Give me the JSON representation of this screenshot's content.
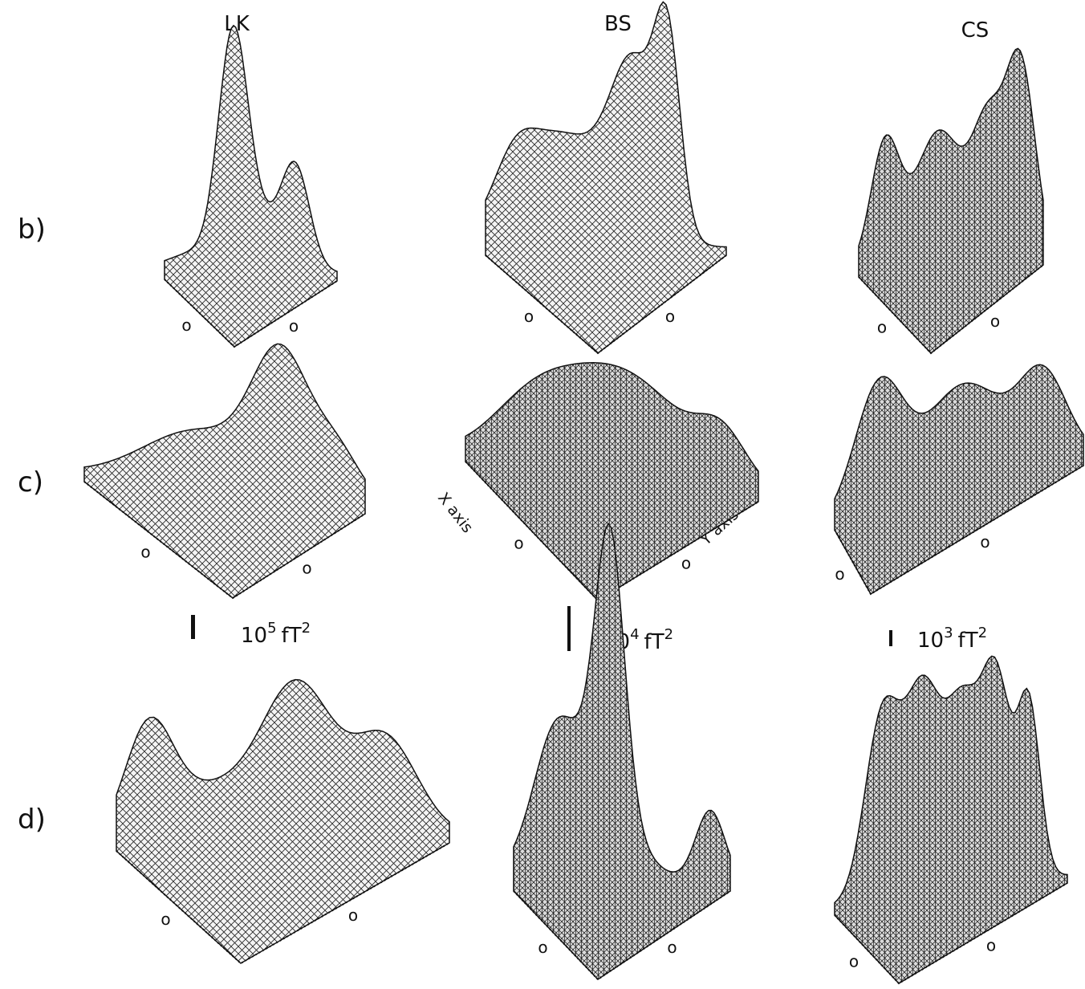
{
  "columns": [
    "LK",
    "BS",
    "CS"
  ],
  "rows": [
    {
      "label": "b)",
      "origin_labels": [
        [
          "o",
          "o"
        ],
        [
          "o",
          "o"
        ],
        [
          "o",
          "o"
        ]
      ]
    },
    {
      "label": "c)",
      "origin_labels": [
        [
          "o",
          "o"
        ],
        [
          "o",
          "o"
        ],
        [
          "o",
          "o"
        ]
      ]
    },
    {
      "label": "d)",
      "origin_labels": [
        [
          "o",
          "o"
        ],
        [
          "o",
          "o"
        ],
        [
          "o",
          "o"
        ]
      ]
    }
  ],
  "axis_labels": {
    "x": "X axis",
    "y": "Y axis"
  },
  "scale_bars": [
    {
      "base": "10",
      "exponent": "5",
      "unit": "fT",
      "unit_exponent": "2"
    },
    {
      "base": "10",
      "exponent": "4",
      "unit": "fT",
      "unit_exponent": "2"
    },
    {
      "base": "10",
      "exponent": "3",
      "unit": "fT",
      "unit_exponent": "2"
    }
  ]
}
